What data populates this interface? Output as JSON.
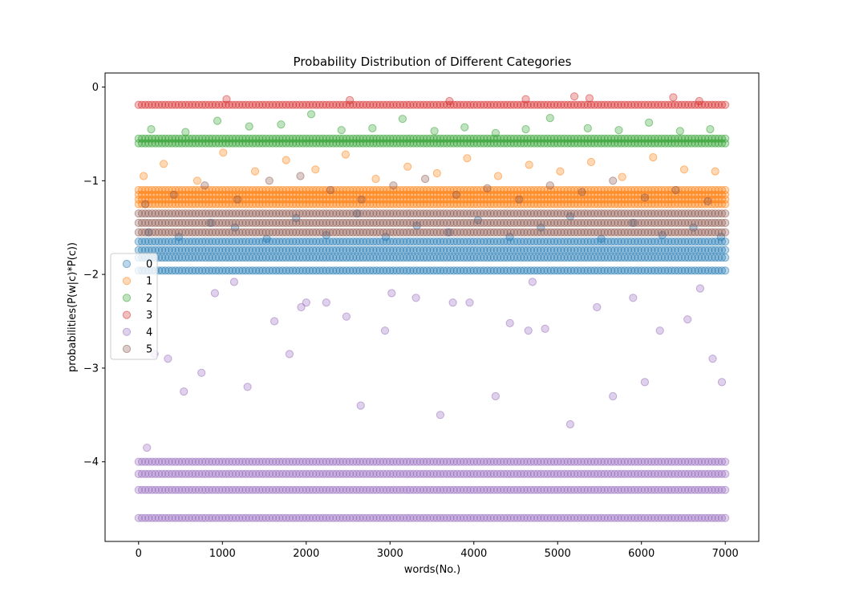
{
  "chart_data": {
    "type": "scatter",
    "title": "Probability Distribution of Different Categories",
    "xlabel": "words(No.)",
    "ylabel": "probabilities(P(w|c)*P(c))",
    "xlim": [
      -400,
      7400
    ],
    "ylim": [
      -4.85,
      0.15
    ],
    "xticks": [
      0,
      1000,
      2000,
      3000,
      4000,
      5000,
      6000,
      7000
    ],
    "yticks": [
      0,
      -1,
      -2,
      -3,
      -4
    ],
    "grid": false,
    "legend_position": "center-left",
    "marker_alpha": 0.3,
    "series": [
      {
        "name": "0",
        "color": "#1f77b4",
        "bands": [
          -1.96,
          -1.82,
          -1.74,
          -1.65
        ],
        "x": [
          120,
          480,
          860,
          1150,
          1530,
          1880,
          2240,
          2610,
          2950,
          3320,
          3700,
          4050,
          4430,
          4800,
          5150,
          5520,
          5900,
          6250,
          6620,
          6950
        ],
        "y": [
          -1.55,
          -1.6,
          -1.45,
          -1.5,
          -1.62,
          -1.4,
          -1.58,
          -1.35,
          -1.6,
          -1.48,
          -1.55,
          -1.42,
          -1.6,
          -1.5,
          -1.38,
          -1.62,
          -1.45,
          -1.58,
          -1.5,
          -1.6
        ]
      },
      {
        "name": "1",
        "color": "#ff7f0e",
        "bands": [
          -1.15,
          -1.2,
          -1.1,
          -1.25
        ],
        "x": [
          60,
          300,
          700,
          1010,
          1390,
          1760,
          2110,
          2470,
          2830,
          3210,
          3560,
          3920,
          4290,
          4660,
          5030,
          5400,
          5770,
          6140,
          6510,
          6880
        ],
        "y": [
          -0.95,
          -0.82,
          -1.0,
          -0.7,
          -0.9,
          -0.78,
          -0.88,
          -0.72,
          -0.98,
          -0.85,
          -0.92,
          -0.76,
          -0.95,
          -0.83,
          -0.9,
          -0.8,
          -0.96,
          -0.75,
          -0.88,
          -0.9
        ]
      },
      {
        "name": "2",
        "color": "#2ca02c",
        "bands": [
          -0.6,
          -0.55
        ],
        "x": [
          150,
          560,
          940,
          1320,
          1700,
          2060,
          2420,
          2790,
          3150,
          3530,
          3890,
          4260,
          4620,
          4910,
          5360,
          5730,
          6090,
          6460,
          6820
        ],
        "y": [
          -0.45,
          -0.48,
          -0.36,
          -0.42,
          -0.4,
          -0.29,
          -0.46,
          -0.44,
          -0.34,
          -0.47,
          -0.43,
          -0.49,
          -0.45,
          -0.33,
          -0.44,
          -0.46,
          -0.38,
          -0.47,
          -0.45
        ]
      },
      {
        "name": "3",
        "color": "#d62728",
        "bands": [
          -0.19
        ],
        "x": [
          1050,
          2520,
          3710,
          4620,
          5200,
          5380,
          6380,
          6690
        ],
        "y": [
          -0.13,
          -0.14,
          -0.15,
          -0.13,
          -0.1,
          -0.12,
          -0.11,
          -0.15
        ]
      },
      {
        "name": "4",
        "color": "#9467bd",
        "bands": [
          -4.6,
          -4.3,
          -4.13,
          -4.0
        ],
        "x": [
          100,
          190,
          350,
          540,
          750,
          910,
          1140,
          1300,
          1620,
          1800,
          1940,
          2000,
          2240,
          2480,
          2650,
          2940,
          3020,
          3310,
          3600,
          3750,
          3950,
          4260,
          4430,
          4650,
          4700,
          4850,
          5150,
          5470,
          5660,
          5900,
          6040,
          6220,
          6550,
          6700,
          6850,
          6960
        ],
        "y": [
          -3.85,
          -2.85,
          -2.9,
          -3.25,
          -3.05,
          -2.2,
          -2.08,
          -3.2,
          -2.5,
          -2.85,
          -2.35,
          -2.3,
          -2.3,
          -2.45,
          -3.4,
          -2.6,
          -2.2,
          -2.25,
          -3.5,
          -2.3,
          -2.3,
          -3.3,
          -2.52,
          -2.6,
          -2.08,
          -2.58,
          -3.6,
          -2.35,
          -3.3,
          -2.25,
          -3.15,
          -2.6,
          -2.48,
          -2.15,
          -2.9,
          -3.15
        ]
      },
      {
        "name": "5",
        "color": "#8c564b",
        "bands": [
          -1.55,
          -1.45,
          -1.35
        ],
        "x": [
          80,
          420,
          790,
          1180,
          1560,
          1930,
          2290,
          2660,
          3040,
          3420,
          3790,
          4160,
          4540,
          4910,
          5290,
          5660,
          6040,
          6410,
          6790
        ],
        "y": [
          -1.25,
          -1.15,
          -1.05,
          -1.2,
          -1.0,
          -0.95,
          -1.1,
          -1.2,
          -1.05,
          -0.98,
          -1.15,
          -1.08,
          -1.2,
          -1.05,
          -1.12,
          -1.0,
          -1.18,
          -1.1,
          -1.22
        ]
      }
    ]
  }
}
